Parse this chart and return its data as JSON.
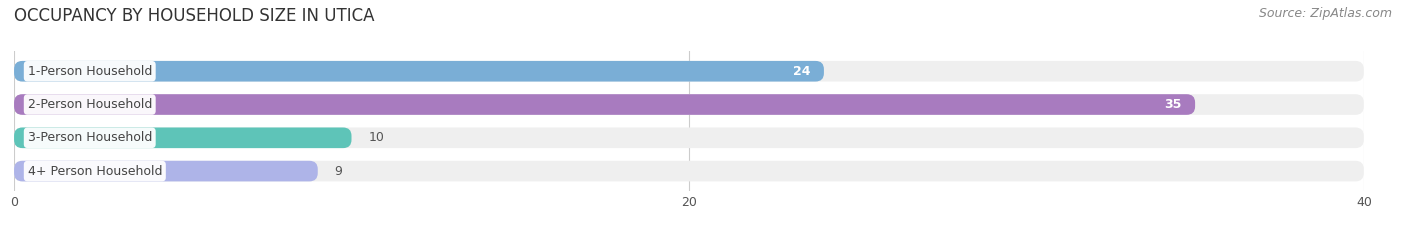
{
  "title": "OCCUPANCY BY HOUSEHOLD SIZE IN UTICA",
  "source": "Source: ZipAtlas.com",
  "categories": [
    "1-Person Household",
    "2-Person Household",
    "3-Person Household",
    "4+ Person Household"
  ],
  "values": [
    24,
    35,
    10,
    9
  ],
  "bar_colors": [
    "#7aaed6",
    "#a87bbf",
    "#5ec4b8",
    "#aeb4e8"
  ],
  "track_bg_color": "#efefef",
  "xlim": [
    0,
    40
  ],
  "xticks": [
    0,
    20,
    40
  ],
  "title_fontsize": 12,
  "source_fontsize": 9,
  "label_fontsize": 9,
  "value_fontsize": 9,
  "fig_bg_color": "#ffffff",
  "bar_height": 0.62,
  "label_bg_color": "#ffffff",
  "value_threshold": 12
}
